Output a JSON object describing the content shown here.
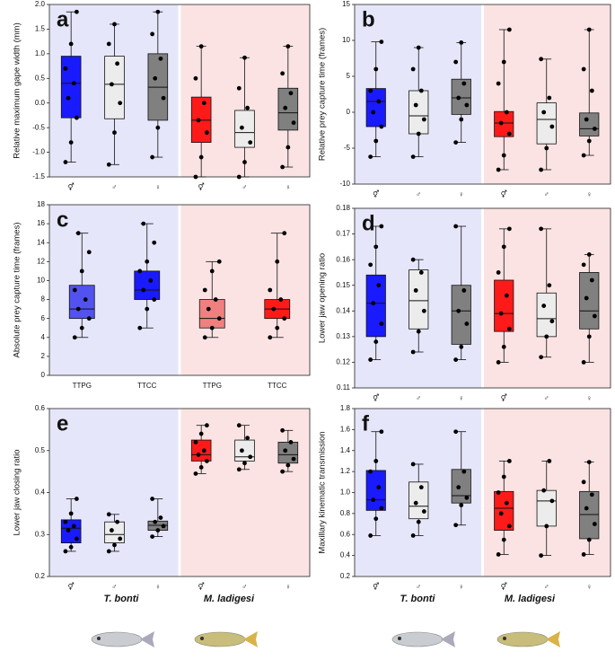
{
  "chart_data": [
    {
      "type": "box",
      "panel": "a",
      "ylabel": "Relative maximum gape width (mm)",
      "categories": [
        "⚥",
        "♂",
        "♀",
        "⚥",
        "♂",
        "♀"
      ],
      "ylim": [
        -1.5,
        2.0
      ],
      "yticks": [
        -1.5,
        {
          "value": -1,
          "label": "-1.0"
        },
        -0.5,
        {
          "value": 0,
          "label": "0.0"
        },
        0.5,
        {
          "value": 1,
          "label": "1.0"
        },
        1.5,
        {
          "value": 2,
          "label": "2.0"
        }
      ],
      "boxes": [
        {
          "color": "#1a1aff",
          "min": -1.2,
          "q1": -0.3,
          "median": 0.4,
          "q3": 0.95,
          "max": 1.85,
          "points": [
            -1.2,
            -0.8,
            -0.3,
            0.1,
            0.4,
            0.7,
            1.2,
            1.85
          ]
        },
        {
          "color": "#ececec",
          "min": -1.25,
          "q1": -0.32,
          "median": 0.38,
          "q3": 0.95,
          "max": 1.6,
          "points": [
            -1.25,
            -0.6,
            0.0,
            0.38,
            0.8,
            1.2,
            1.6
          ]
        },
        {
          "color": "#808080",
          "min": -1.1,
          "q1": -0.35,
          "median": 0.32,
          "q3": 1.0,
          "max": 1.85,
          "points": [
            -1.1,
            -0.5,
            0.1,
            0.5,
            0.9,
            1.4,
            1.85
          ]
        },
        {
          "color": "#ff1a1a",
          "min": -1.5,
          "q1": -0.8,
          "median": -0.35,
          "q3": 0.12,
          "max": 1.15,
          "points": [
            -1.5,
            -1.1,
            -0.6,
            -0.35,
            0.0,
            0.5,
            1.15
          ]
        },
        {
          "color": "#ececec",
          "min": -1.5,
          "q1": -0.9,
          "median": -0.6,
          "q3": -0.15,
          "max": 0.92,
          "points": [
            -1.5,
            -1.2,
            -0.8,
            -0.5,
            -0.1,
            0.3,
            0.92
          ]
        },
        {
          "color": "#808080",
          "min": -1.3,
          "q1": -0.55,
          "median": -0.2,
          "q3": 0.3,
          "max": 1.15,
          "points": [
            -1.3,
            -0.9,
            -0.4,
            -0.1,
            0.2,
            0.6,
            1.15
          ]
        }
      ]
    },
    {
      "type": "box",
      "panel": "b",
      "ylabel": "Relative prey capture time (frames)",
      "categories": [
        "⚥",
        "♂",
        "♀",
        "⚥",
        "♂",
        "♀"
      ],
      "ylim": [
        -10,
        15
      ],
      "yticks": [
        -10,
        -5,
        0,
        5,
        10,
        15
      ],
      "boxes": [
        {
          "color": "#1a1aff",
          "min": -6.2,
          "q1": -2,
          "median": 1.5,
          "q3": 3.3,
          "max": 9.8,
          "points": [
            -6.2,
            -4,
            -2,
            0,
            1.5,
            3,
            6,
            9.8
          ]
        },
        {
          "color": "#ececec",
          "min": -6.2,
          "q1": -3,
          "median": -0.5,
          "q3": 3,
          "max": 9,
          "points": [
            -6.2,
            -3,
            -1,
            1,
            3,
            6,
            9
          ]
        },
        {
          "color": "#808080",
          "min": -4.2,
          "q1": -0.3,
          "median": 2,
          "q3": 4.6,
          "max": 9.7,
          "points": [
            -4.2,
            -1,
            1,
            2,
            4,
            7,
            9.7
          ]
        },
        {
          "color": "#ff1a1a",
          "min": -8,
          "q1": -3.4,
          "median": -1.5,
          "q3": 0.1,
          "max": 11.5,
          "points": [
            -8,
            -6,
            -3,
            -1.5,
            0,
            4,
            7,
            11.5
          ]
        },
        {
          "color": "#ececec",
          "min": -8,
          "q1": -4.4,
          "median": -1,
          "q3": 1.3,
          "max": 7.4,
          "points": [
            -8,
            -5,
            -2,
            0,
            2,
            7.4
          ]
        },
        {
          "color": "#808080",
          "min": -6,
          "q1": -3.3,
          "median": -2.3,
          "q3": -0.1,
          "max": 11.5,
          "points": [
            -6,
            -4,
            -2.3,
            -1,
            3,
            6,
            11.5
          ]
        }
      ]
    },
    {
      "type": "box",
      "panel": "c",
      "ylabel": "Absolute prey capture time (frames)",
      "categories": [
        "TTPG",
        "TTCC",
        "TTPG",
        "TTCC"
      ],
      "ylim": [
        0,
        18
      ],
      "yticks": [
        0,
        2,
        4,
        6,
        8,
        10,
        12,
        14,
        16,
        18
      ],
      "boxes": [
        {
          "color": "#5252f0",
          "min": 4,
          "q1": 6,
          "median": 7,
          "q3": 9.5,
          "max": 15,
          "points": [
            4,
            5,
            6,
            7,
            8,
            9,
            11,
            13,
            15
          ]
        },
        {
          "color": "#1a1aff",
          "min": 5,
          "q1": 8,
          "median": 9,
          "q3": 11,
          "max": 16,
          "points": [
            5,
            7,
            8,
            9,
            10,
            11,
            12,
            14,
            16
          ]
        },
        {
          "color": "#f08080",
          "min": 4,
          "q1": 5,
          "median": 6,
          "q3": 8,
          "max": 12,
          "points": [
            4,
            5,
            6,
            7,
            8,
            9,
            11,
            12
          ]
        },
        {
          "color": "#ff1a1a",
          "min": 4,
          "q1": 6,
          "median": 7,
          "q3": 8,
          "max": 15,
          "points": [
            4,
            5,
            6,
            7,
            8,
            9,
            12,
            15
          ]
        }
      ]
    },
    {
      "type": "box",
      "panel": "d",
      "ylabel": "Lower jaw opening ratio",
      "categories": [
        "⚥",
        "♂",
        "♀",
        "⚥",
        "♂",
        "♀"
      ],
      "ylim": [
        0.11,
        0.18
      ],
      "yticks": [
        0.11,
        0.12,
        0.13,
        0.14,
        0.15,
        0.16,
        0.17,
        0.18
      ],
      "boxes": [
        {
          "color": "#1a1aff",
          "min": 0.121,
          "q1": 0.13,
          "median": 0.143,
          "q3": 0.154,
          "max": 0.173,
          "points": [
            0.121,
            0.128,
            0.135,
            0.143,
            0.15,
            0.158,
            0.165,
            0.173
          ]
        },
        {
          "color": "#ececec",
          "min": 0.124,
          "q1": 0.133,
          "median": 0.144,
          "q3": 0.156,
          "max": 0.16,
          "points": [
            0.124,
            0.132,
            0.14,
            0.148,
            0.155,
            0.16
          ]
        },
        {
          "color": "#808080",
          "min": 0.121,
          "q1": 0.127,
          "median": 0.14,
          "q3": 0.15,
          "max": 0.173,
          "points": [
            0.121,
            0.126,
            0.135,
            0.14,
            0.148,
            0.173
          ]
        },
        {
          "color": "#ff1a1a",
          "min": 0.12,
          "q1": 0.132,
          "median": 0.139,
          "q3": 0.152,
          "max": 0.172,
          "points": [
            0.12,
            0.126,
            0.133,
            0.139,
            0.146,
            0.155,
            0.165,
            0.172
          ]
        },
        {
          "color": "#ececec",
          "min": 0.122,
          "q1": 0.13,
          "median": 0.137,
          "q3": 0.147,
          "max": 0.172,
          "points": [
            0.122,
            0.13,
            0.136,
            0.142,
            0.15,
            0.172
          ]
        },
        {
          "color": "#808080",
          "min": 0.12,
          "q1": 0.133,
          "median": 0.14,
          "q3": 0.155,
          "max": 0.162,
          "points": [
            0.12,
            0.13,
            0.138,
            0.145,
            0.152,
            0.158,
            0.162
          ]
        }
      ]
    },
    {
      "type": "box",
      "panel": "e",
      "ylabel": "Lower jaw closing ratio",
      "categories": [
        "⚥",
        "♂",
        "♀",
        "⚥",
        "♂",
        "♀"
      ],
      "ylim": [
        0.2,
        0.6
      ],
      "yticks": [
        0.2,
        0.3,
        0.4,
        0.5,
        0.6
      ],
      "boxes": [
        {
          "color": "#1a1aff",
          "min": 0.26,
          "q1": 0.28,
          "median": 0.315,
          "q3": 0.335,
          "max": 0.385,
          "points": [
            0.26,
            0.27,
            0.29,
            0.31,
            0.32,
            0.33,
            0.35,
            0.385
          ]
        },
        {
          "color": "#ececec",
          "min": 0.26,
          "q1": 0.28,
          "median": 0.3,
          "q3": 0.33,
          "max": 0.348,
          "points": [
            0.26,
            0.275,
            0.29,
            0.31,
            0.33,
            0.348
          ]
        },
        {
          "color": "#808080",
          "min": 0.295,
          "q1": 0.31,
          "median": 0.322,
          "q3": 0.332,
          "max": 0.385,
          "points": [
            0.295,
            0.31,
            0.32,
            0.33,
            0.34,
            0.385
          ]
        },
        {
          "color": "#ff1a1a",
          "min": 0.445,
          "q1": 0.475,
          "median": 0.49,
          "q3": 0.525,
          "max": 0.56,
          "points": [
            0.445,
            0.46,
            0.475,
            0.49,
            0.5,
            0.52,
            0.54,
            0.56
          ]
        },
        {
          "color": "#ececec",
          "min": 0.455,
          "q1": 0.475,
          "median": 0.485,
          "q3": 0.525,
          "max": 0.56,
          "points": [
            0.455,
            0.47,
            0.485,
            0.5,
            0.53,
            0.56
          ]
        },
        {
          "color": "#808080",
          "min": 0.45,
          "q1": 0.47,
          "median": 0.49,
          "q3": 0.52,
          "max": 0.548,
          "points": [
            0.45,
            0.465,
            0.48,
            0.5,
            0.52,
            0.548
          ]
        }
      ]
    },
    {
      "type": "box",
      "panel": "f",
      "ylabel": "Maxillary kinematic transmission",
      "categories": [
        "⚥",
        "♂",
        "♀",
        "⚥",
        "♂",
        "♀"
      ],
      "ylim": [
        0.2,
        1.8
      ],
      "yticks": [
        0.2,
        0.4,
        0.6,
        0.8,
        {
          "value": 1,
          "label": "1.0"
        },
        1.2,
        1.4,
        1.6,
        1.8
      ],
      "boxes": [
        {
          "color": "#1a1aff",
          "min": 0.59,
          "q1": 0.83,
          "median": 0.93,
          "q3": 1.21,
          "max": 1.58,
          "points": [
            0.59,
            0.75,
            0.85,
            0.93,
            1.05,
            1.2,
            1.3,
            1.58
          ]
        },
        {
          "color": "#ececec",
          "min": 0.59,
          "q1": 0.75,
          "median": 0.87,
          "q3": 1.1,
          "max": 1.27,
          "points": [
            0.59,
            0.72,
            0.82,
            0.9,
            1.05,
            1.27
          ]
        },
        {
          "color": "#808080",
          "min": 0.69,
          "q1": 0.9,
          "median": 0.97,
          "q3": 1.22,
          "max": 1.58,
          "points": [
            0.69,
            0.88,
            0.95,
            1.05,
            1.2,
            1.58
          ]
        },
        {
          "color": "#ff1a1a",
          "min": 0.41,
          "q1": 0.64,
          "median": 0.85,
          "q3": 1.01,
          "max": 1.3,
          "points": [
            0.41,
            0.55,
            0.68,
            0.8,
            0.9,
            1.0,
            1.15,
            1.3
          ]
        },
        {
          "color": "#ececec",
          "min": 0.4,
          "q1": 0.68,
          "median": 0.92,
          "q3": 1.02,
          "max": 1.3,
          "points": [
            0.4,
            0.68,
            0.92,
            1.02,
            1.3
          ]
        },
        {
          "color": "#808080",
          "min": 0.41,
          "q1": 0.56,
          "median": 0.79,
          "q3": 1.01,
          "max": 1.29,
          "points": [
            0.41,
            0.55,
            0.7,
            0.85,
            0.98,
            1.1,
            1.29
          ]
        }
      ]
    }
  ],
  "groups": [
    "T. bonti",
    "M. ladigesi"
  ]
}
